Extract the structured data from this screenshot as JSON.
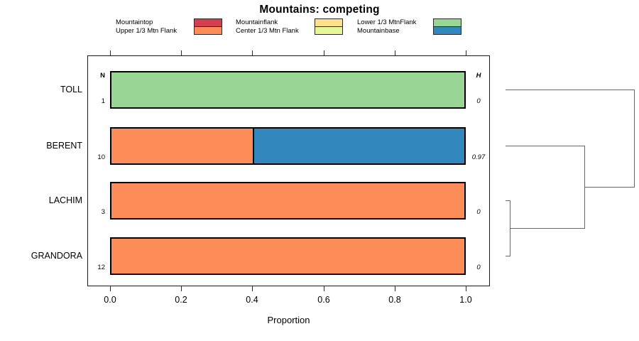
{
  "title": "Mountains: competing",
  "legend": {
    "position": "top",
    "items": [
      {
        "label": "Mountaintop",
        "color": "#D53E4F"
      },
      {
        "label": "Upper 1/3 Mtn Flank",
        "color": "#FC8D59"
      },
      {
        "label": "Mountainflank",
        "color": "#FEE08B"
      },
      {
        "label": "Center 1/3 Mtn Flank",
        "color": "#E6F598"
      },
      {
        "label": "Lower 1/3 MtnFlank",
        "color": "#99D594"
      },
      {
        "label": "Mountainbase",
        "color": "#3288BD"
      }
    ]
  },
  "chart_data": {
    "type": "bar",
    "orientation": "horizontal",
    "stacked": true,
    "title": "Mountains: competing",
    "xlabel": "Proportion",
    "xlim": [
      0,
      1
    ],
    "x_ticks": [
      "0.0",
      "0.2",
      "0.4",
      "0.6",
      "0.8",
      "1.0"
    ],
    "grid": false,
    "n_header": "N",
    "h_header": "H",
    "categories": [
      "TOLL",
      "BERENT",
      "LACHIM",
      "GRANDORA"
    ],
    "rows": [
      {
        "category": "TOLL",
        "n": "1",
        "h": "0",
        "segments": [
          {
            "label": "Lower 1/3 MtnFlank",
            "value": 1.0,
            "color": "#99D594"
          }
        ]
      },
      {
        "category": "BERENT",
        "n": "10",
        "h": "0.97",
        "segments": [
          {
            "label": "Upper 1/3 Mtn Flank",
            "value": 0.4,
            "color": "#FC8D59"
          },
          {
            "label": "Mountainbase",
            "value": 0.6,
            "color": "#3288BD"
          }
        ]
      },
      {
        "category": "LACHIM",
        "n": "3",
        "h": "0",
        "segments": [
          {
            "label": "Upper 1/3 Mtn Flank",
            "value": 1.0,
            "color": "#FC8D59"
          }
        ]
      },
      {
        "category": "GRANDORA",
        "n": "12",
        "h": "0",
        "segments": [
          {
            "label": "Upper 1/3 Mtn Flank",
            "value": 1.0,
            "color": "#FC8D59"
          }
        ]
      }
    ],
    "dendrogram": {
      "side": "right",
      "leaves": [
        "TOLL",
        "BERENT",
        "LACHIM",
        "GRANDORA"
      ],
      "merges": [
        {
          "children": [
            2,
            3
          ],
          "height": 0.033
        },
        {
          "children": [
            4,
            1
          ],
          "height": 0.613
        },
        {
          "children": [
            5,
            0
          ],
          "height": 1.0
        }
      ]
    }
  }
}
